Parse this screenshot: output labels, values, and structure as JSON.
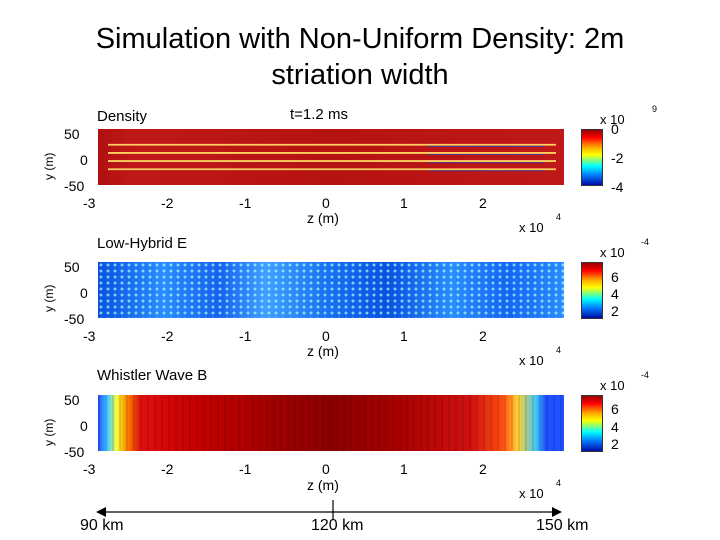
{
  "title_line1": "Simulation with Non-Uniform Density: 2m",
  "title_line2": "striation width",
  "time_label": "t=1.2 ms",
  "z_axis_label": "z (m)",
  "y_axis_label": "y (m)",
  "z_exponent_base": "x 10",
  "z_exponent": "4",
  "colors": {
    "density_background": "#b51212",
    "density_striation": "#ffd060",
    "lowhybrid_field": "#1c74f4",
    "whistler_center": "#8c0000"
  },
  "panels": [
    {
      "label": "Density",
      "colorbar_base": "x 10",
      "colorbar_exponent": "9",
      "colorbar_ticks": [
        "0",
        "-2",
        "-4"
      ],
      "z_ticks": [
        "-3",
        "-2",
        "-1",
        "0",
        "1",
        "2"
      ],
      "y_ticks": [
        "50",
        "0",
        "-50"
      ]
    },
    {
      "label": "Low-Hybrid E",
      "colorbar_base": "x 10",
      "colorbar_exponent": "-4",
      "colorbar_ticks": [
        "6",
        "4",
        "2"
      ],
      "z_ticks": [
        "-3",
        "-2",
        "-1",
        "0",
        "1",
        "2"
      ],
      "y_ticks": [
        "50",
        "0",
        "-50"
      ]
    },
    {
      "label": "Whistler Wave B",
      "colorbar_base": "x 10",
      "colorbar_exponent": "-4",
      "colorbar_ticks": [
        "6",
        "4",
        "2"
      ],
      "z_ticks": [
        "-3",
        "-2",
        "-1",
        "0",
        "1",
        "2"
      ],
      "y_ticks": [
        "50",
        "0",
        "-50"
      ]
    }
  ],
  "distance_axis": [
    "90 km",
    "120 km",
    "150 km"
  ],
  "chart_data": [
    {
      "type": "heatmap",
      "title": "Density",
      "xlabel": "z (m)",
      "ylabel": "y (m)",
      "x_multiplier": "x 10^4",
      "xlim": [
        -3.1,
        2.9
      ],
      "ylim": [
        -55,
        55
      ],
      "x_ticks": [
        -3,
        -2,
        -1,
        0,
        1,
        2
      ],
      "y_ticks": [
        50,
        0,
        -50
      ],
      "colorbar": {
        "multiplier": "x 10^9",
        "ticks": [
          0,
          -2,
          -4
        ]
      },
      "striation_y_positions": [
        24,
        8,
        -8,
        -24
      ]
    },
    {
      "type": "heatmap",
      "title": "Low-Hybrid E",
      "xlabel": "z (m)",
      "ylabel": "y (m)",
      "x_multiplier": "x 10^4",
      "xlim": [
        -3.1,
        2.9
      ],
      "ylim": [
        -55,
        55
      ],
      "x_ticks": [
        -3,
        -2,
        -1,
        0,
        1,
        2
      ],
      "y_ticks": [
        50,
        0,
        -50
      ],
      "colorbar": {
        "multiplier": "x 10^-4",
        "ticks": [
          6,
          4,
          2
        ]
      }
    },
    {
      "type": "heatmap",
      "title": "Whistler Wave B",
      "xlabel": "z (m)",
      "ylabel": "y (m)",
      "x_multiplier": "x 10^4",
      "xlim": [
        -3.1,
        2.9
      ],
      "ylim": [
        -55,
        55
      ],
      "x_ticks": [
        -3,
        -2,
        -1,
        0,
        1,
        2
      ],
      "y_ticks": [
        50,
        0,
        -50
      ],
      "colorbar": {
        "multiplier": "x 10^-4",
        "ticks": [
          6,
          4,
          2
        ]
      }
    }
  ]
}
